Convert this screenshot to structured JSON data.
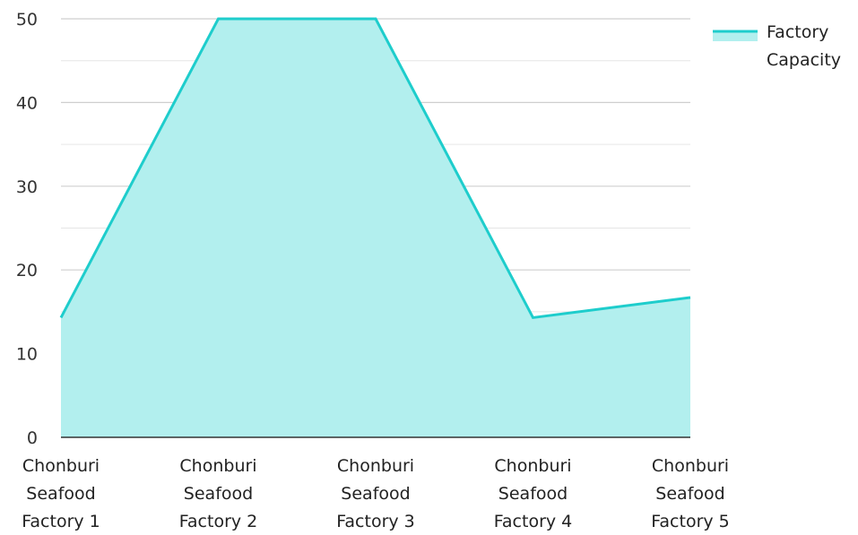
{
  "chart_data": {
    "type": "area",
    "categories": [
      [
        "Chonburi",
        "Seafood",
        "Factory 1"
      ],
      [
        "Chonburi",
        "Seafood",
        "Factory 2"
      ],
      [
        "Chonburi",
        "Seafood",
        "Factory 3"
      ],
      [
        "Chonburi",
        "Seafood",
        "Factory 4"
      ],
      [
        "Chonburi",
        "Seafood",
        "Factory 5"
      ]
    ],
    "series": [
      {
        "name": "Factory Capacity",
        "values": [
          14.3,
          50,
          50,
          14.3,
          16.7
        ]
      }
    ],
    "legend": {
      "lines": [
        "Factory",
        "Capacity"
      ],
      "position": "top-right"
    },
    "ylim": [
      0,
      50
    ],
    "yticks": [
      0,
      10,
      20,
      30,
      40,
      50
    ],
    "grid": true,
    "colors": {
      "line": "#1ecdcc",
      "fill": "#b2efee",
      "grid": "#cfcfcf",
      "minor_grid": "#e6e6e6",
      "axis": "#333333"
    },
    "title": "",
    "xlabel": "",
    "ylabel": ""
  }
}
